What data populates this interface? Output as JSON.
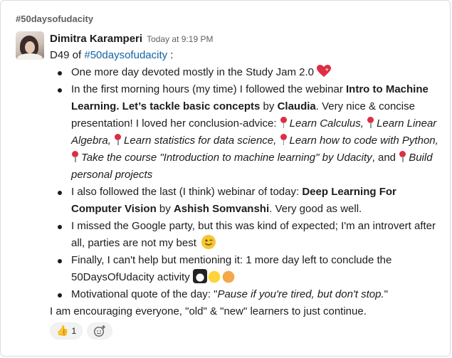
{
  "channel": "#50daysofudacity",
  "message": {
    "author": "Dimitra Karamperi",
    "time": "Today at 9:19 PM",
    "intro_prefix": "D49 of ",
    "intro_tag": "#50daysofudacity",
    "intro_suffix": " :",
    "bullets": {
      "b1": "One more day devoted mostly in the Study Jam 2.0",
      "b2_a": "In the first morning hours (my time) I followed the webinar ",
      "b2_bold1": "Intro to Machine Learning. Let’s tackle basic concepts",
      "b2_b": " by ",
      "b2_bold2": "Claudia",
      "b2_c": ". Very nice & concise presentation! I loved her conclusion-advice: ",
      "advice1": "Learn Calculus,",
      "advice2": "Learn Linear Algebra,",
      "advice3": "Learn statistics for data science,",
      "advice4": "Learn how to code with Python,",
      "advice5": "Take the course \"Introduction to machine learning\" by Udacity",
      "advice_and": ", and ",
      "advice6": "Build personal projects",
      "b3_a": "I also followed the last (I think) webinar of today: ",
      "b3_bold1": "Deep Learning For Computer Vision",
      "b3_b": " by ",
      "b3_bold2": "Ashish Somvanshi",
      "b3_c": ". Very good as well.",
      "b4": "I missed the Google party, but this was kind of expected; I'm an introvert after all, parties are not my best",
      "b5": "Finally, I can't help but mentioning it: 1 more day left to conclude the 50DaysOfUdacity activity",
      "b6_a": "Motivational quote of the day: \"",
      "b6_i": "Pause if you're tired, but don't stop.",
      "b6_b": "\""
    },
    "closing": "I am encouraging everyone, \"old\" & \"new\" learners to just continue."
  },
  "reactions": {
    "thumbs_up_count": "1",
    "icons": [
      "thumbs-up-icon",
      "add-reaction-icon"
    ]
  },
  "colors": {
    "link": "#1264a3",
    "text": "#1d1c1d",
    "muted": "#616061",
    "pin": "#dd2e44"
  }
}
